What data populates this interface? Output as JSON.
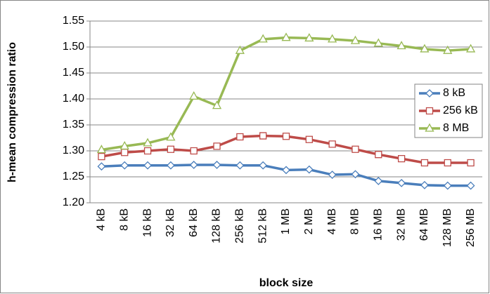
{
  "chart_data": {
    "type": "line",
    "y_label": "h-mean compression ratio",
    "x_label": "block size",
    "categories": [
      "4 kB",
      "8 kB",
      "16 kB",
      "32 kB",
      "64 kB",
      "128 kB",
      "256 kB",
      "512 kB",
      "1 MB",
      "2 MB",
      "4 MB",
      "8 MB",
      "16 MB",
      "32 MB",
      "64 MB",
      "128 MB",
      "256 MB"
    ],
    "series": [
      {
        "name": "8 kB",
        "color": "#4a7ebb",
        "marker": "diamond",
        "values": [
          1.27,
          1.272,
          1.272,
          1.272,
          1.273,
          1.273,
          1.272,
          1.272,
          1.263,
          1.264,
          1.254,
          1.255,
          1.242,
          1.238,
          1.234,
          1.233,
          1.233
        ]
      },
      {
        "name": "256 kB",
        "color": "#be4b48",
        "marker": "square",
        "values": [
          1.289,
          1.297,
          1.3,
          1.303,
          1.3,
          1.309,
          1.327,
          1.329,
          1.328,
          1.322,
          1.313,
          1.303,
          1.293,
          1.285,
          1.277,
          1.277,
          1.277
        ]
      },
      {
        "name": "8 MB",
        "color": "#98b954",
        "marker": "triangle",
        "values": [
          1.302,
          1.309,
          1.315,
          1.326,
          1.405,
          1.387,
          1.493,
          1.515,
          1.518,
          1.517,
          1.515,
          1.512,
          1.507,
          1.502,
          1.496,
          1.493,
          1.496
        ]
      }
    ],
    "ylim": [
      1.2,
      1.55
    ],
    "yticks": [
      {
        "value": 1.2,
        "label": "1.20"
      },
      {
        "value": 1.25,
        "label": "1.25"
      },
      {
        "value": 1.3,
        "label": "1.30"
      },
      {
        "value": 1.35,
        "label": "1.35"
      },
      {
        "value": 1.4,
        "label": "1.40"
      },
      {
        "value": 1.45,
        "label": "1.45"
      },
      {
        "value": 1.5,
        "label": "1.50"
      },
      {
        "value": 1.55,
        "label": "1.55"
      }
    ],
    "grid": true,
    "legend": "right"
  }
}
